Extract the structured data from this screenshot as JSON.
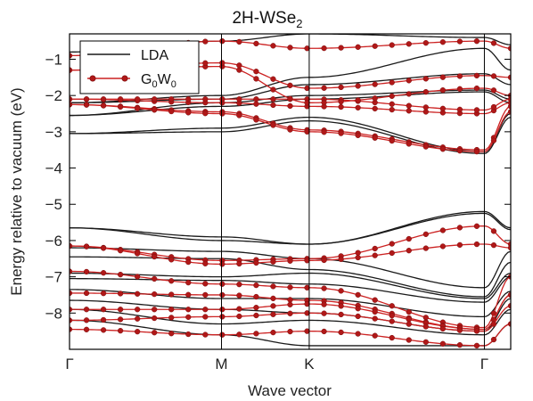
{
  "chart_data": {
    "type": "line",
    "title_main": "2H-WSe",
    "title_sub": "2",
    "xlabel": "Wave vector",
    "ylabel": "Energy relative to vacuum (eV)",
    "xlim": [
      0,
      1.675
    ],
    "ylim": [
      -9.0,
      -0.3
    ],
    "x_ticks": [
      {
        "label": "Γ",
        "x": 0
      },
      {
        "label": "M",
        "x": 0.577
      },
      {
        "label": "K",
        "x": 0.91
      },
      {
        "label": "Γ",
        "x": 1.575
      }
    ],
    "y_ticks": [
      -8,
      -7,
      -6,
      -5,
      -4,
      -3,
      -2,
      -1
    ],
    "y_tick_labels": [
      "−8",
      "−7",
      "−6",
      "−5",
      "−4",
      "−3",
      "−2",
      "−1"
    ],
    "legend": {
      "position": "top-left",
      "entries": [
        {
          "name": "LDA",
          "sub": "",
          "color": "#1a1a1a",
          "marker": false
        },
        {
          "name": "G",
          "sub": "0",
          "name2": "W",
          "sub2": "0",
          "color": "#cc2222",
          "marker": true
        }
      ]
    },
    "colors": {
      "lda": "#1a1a1a",
      "gw": "#cc2222",
      "gw_marker": "#b01818"
    },
    "k_nodes": [
      0,
      0.577,
      0.91,
      1.575
    ],
    "series": [
      {
        "name": "LDA",
        "bands": [
          [
            -5.65,
            -5.9,
            -6.1,
            -5.2,
            -5.65
          ],
          [
            -5.65,
            -6.0,
            -6.1,
            -5.25,
            -5.7
          ],
          [
            -6.2,
            -6.3,
            -6.5,
            -7.3,
            -6.3
          ],
          [
            -6.45,
            -6.5,
            -6.8,
            -7.55,
            -6.6
          ],
          [
            -6.9,
            -7.0,
            -6.9,
            -7.6,
            -6.9
          ],
          [
            -7.05,
            -7.1,
            -7.2,
            -7.7,
            -7.0
          ],
          [
            -7.35,
            -7.6,
            -7.6,
            -8.1,
            -7.4
          ],
          [
            -7.65,
            -7.9,
            -8.0,
            -8.5,
            -7.6
          ],
          [
            -7.9,
            -8.3,
            -8.2,
            -8.6,
            -7.9
          ],
          [
            -8.2,
            -8.6,
            -8.9,
            -8.9,
            -8.3
          ],
          [
            -3.05,
            -2.9,
            -2.6,
            -3.55,
            -2.5
          ],
          [
            -3.05,
            -3.0,
            -2.7,
            -3.6,
            -2.6
          ],
          [
            -2.55,
            -2.3,
            -2.1,
            -1.9,
            -2.2
          ],
          [
            -2.55,
            -2.2,
            -2.0,
            -1.85,
            -2.1
          ],
          [
            -2.2,
            -2.1,
            -1.7,
            -1.4,
            -1.7
          ],
          [
            -2.2,
            -2.0,
            -1.5,
            -0.7,
            -1.3
          ],
          [
            -0.8,
            -0.5,
            -0.3,
            -0.4,
            -0.6
          ]
        ]
      },
      {
        "name": "G0W0",
        "bands": [
          [
            -6.15,
            -6.55,
            -6.5,
            -5.6,
            -6.1
          ],
          [
            -6.15,
            -6.65,
            -6.55,
            -6.1,
            -6.2
          ],
          [
            -6.85,
            -7.2,
            -7.3,
            -8.4,
            -7.0
          ],
          [
            -7.45,
            -7.5,
            -7.65,
            -8.45,
            -7.5
          ],
          [
            -7.9,
            -7.9,
            -7.75,
            -8.45,
            -7.5
          ],
          [
            -8.2,
            -8.1,
            -8.0,
            -8.5,
            -7.8
          ],
          [
            -8.45,
            -8.6,
            -8.5,
            -8.9,
            -8.3
          ],
          [
            -2.25,
            -2.45,
            -2.95,
            -3.5,
            -2.3
          ],
          [
            -2.25,
            -2.5,
            -3.0,
            -3.55,
            -2.45
          ],
          [
            -2.1,
            -2.2,
            -2.3,
            -2.5,
            -2.2
          ],
          [
            -2.1,
            -2.1,
            -2.1,
            -2.4,
            -2.1
          ],
          [
            -1.3,
            -1.2,
            -2.2,
            -1.8,
            -2.0
          ],
          [
            -1.3,
            -1.1,
            -1.8,
            -1.45,
            -1.5
          ],
          [
            -0.9,
            -0.5,
            -0.7,
            -0.5,
            -0.7
          ]
        ]
      }
    ]
  }
}
